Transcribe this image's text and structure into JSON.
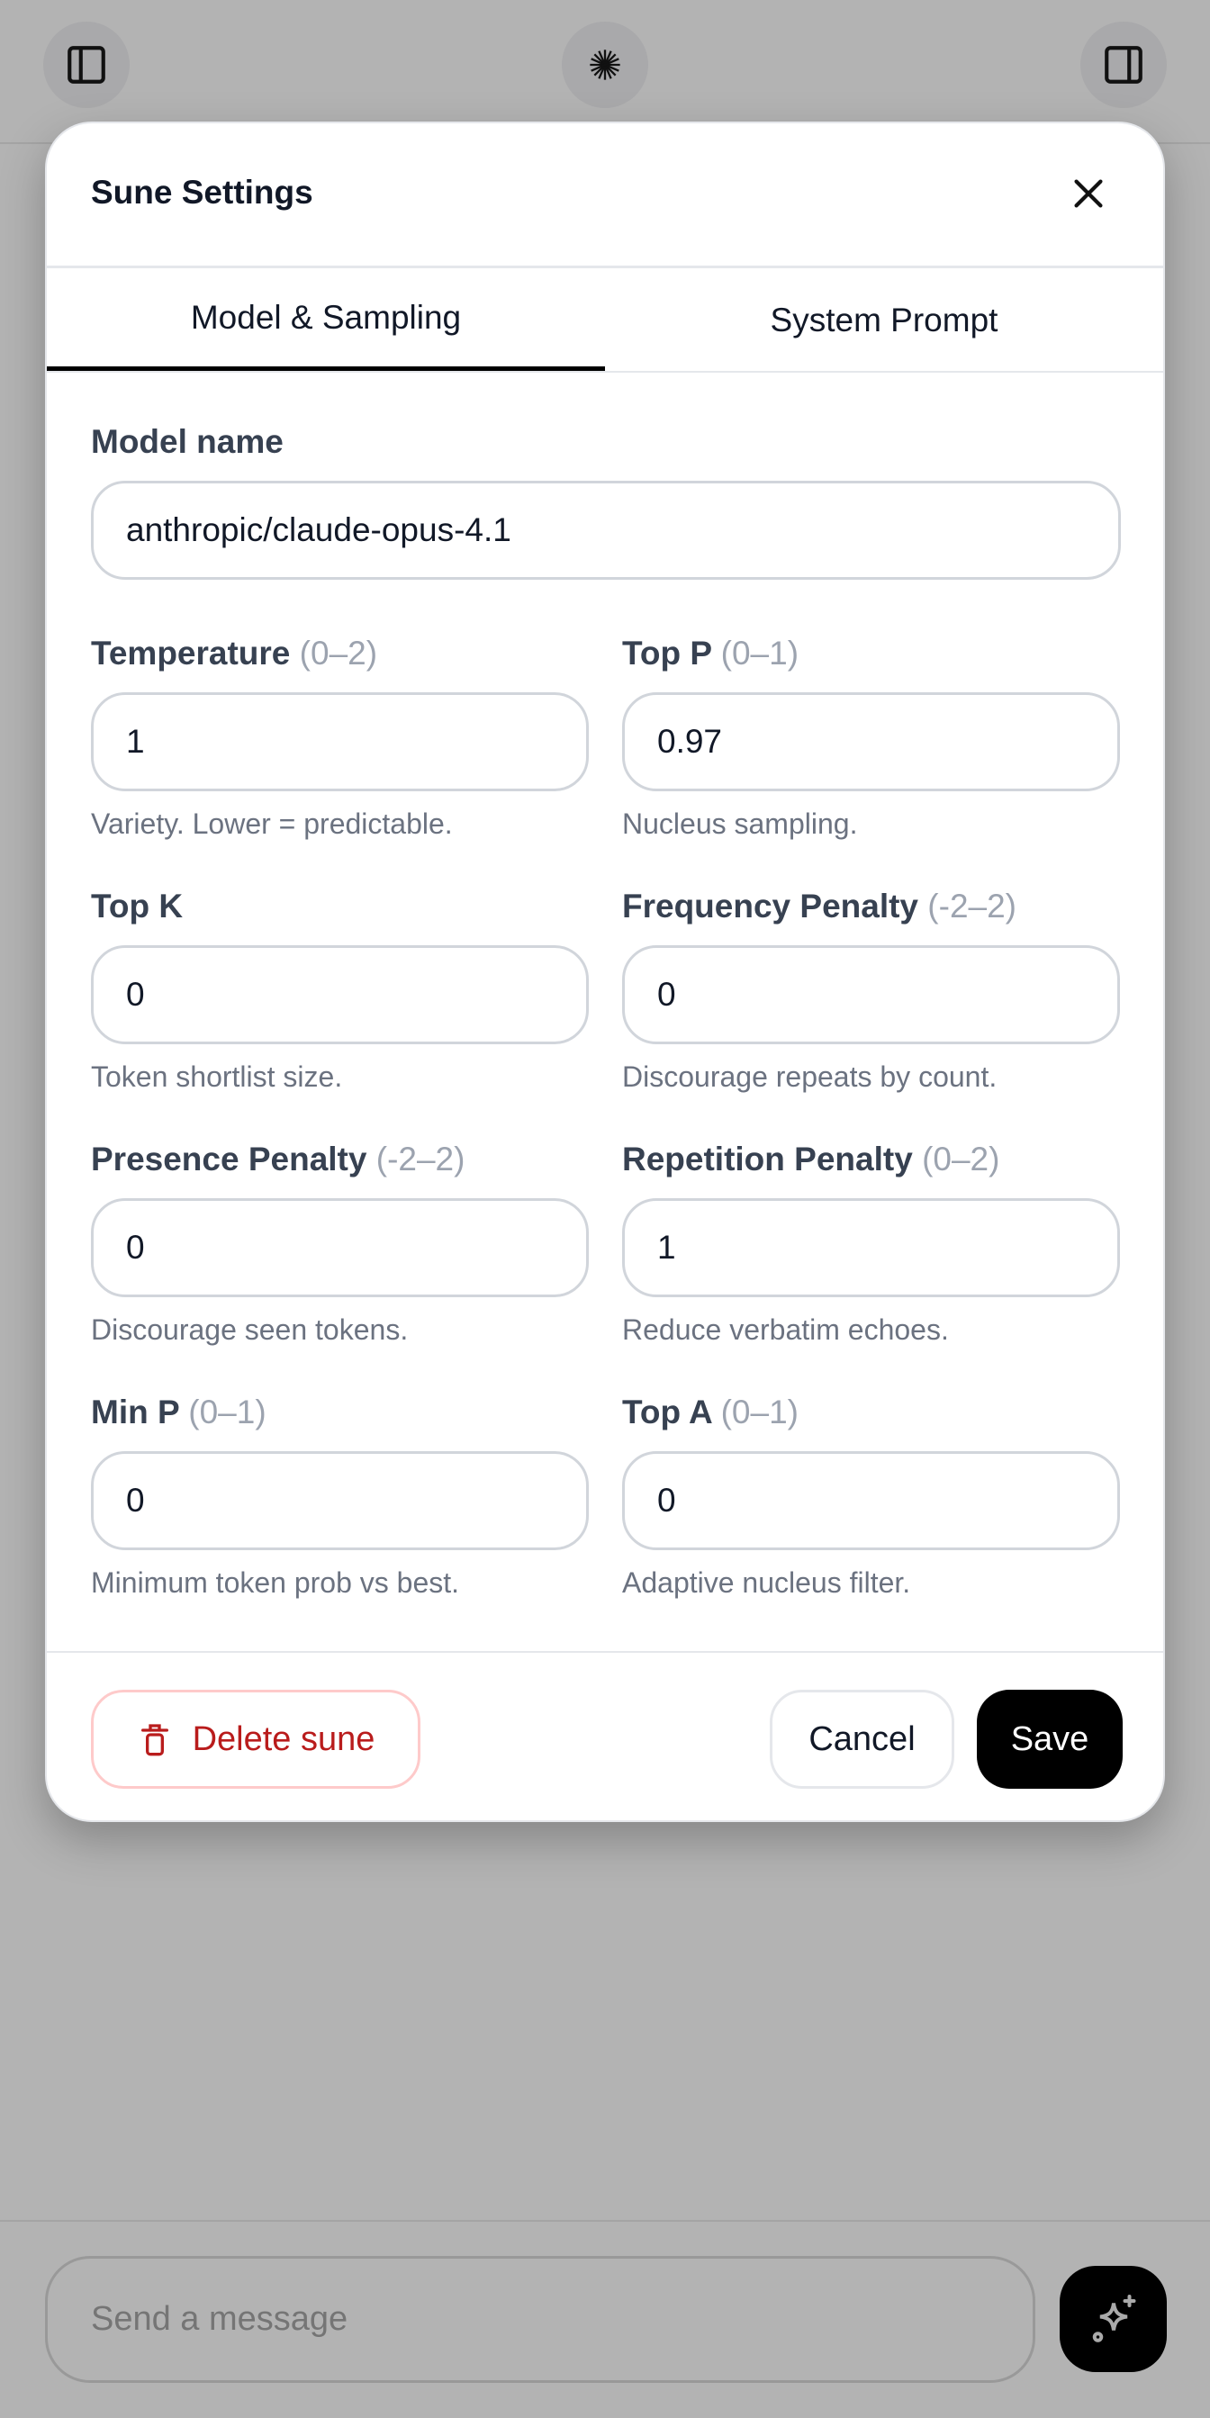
{
  "topbar": {
    "left_icon": "sidebar-left-icon",
    "center_icon": "sune-burst-icon",
    "right_icon": "sidebar-right-icon"
  },
  "modal": {
    "title": "Sune Settings",
    "close_icon": "close-icon",
    "tabs": [
      {
        "label": "Model & Sampling",
        "active": true
      },
      {
        "label": "System Prompt",
        "active": false
      }
    ],
    "model_name": {
      "label": "Model name",
      "value": "anthropic/claude-opus-4.1"
    },
    "fields": [
      {
        "label": "Temperature",
        "range": "(0–2)",
        "value": "1",
        "help": "Variety. Lower = predictable."
      },
      {
        "label": "Top P",
        "range": "(0–1)",
        "value": "0.97",
        "help": "Nucleus sampling."
      },
      {
        "label": "Top K",
        "range": "",
        "value": "0",
        "help": "Token shortlist size."
      },
      {
        "label": "Frequency Penalty",
        "range": "(-2–2)",
        "value": "0",
        "help": "Discourage repeats by count."
      },
      {
        "label": "Presence Penalty",
        "range": "(-2–2)",
        "value": "0",
        "help": "Discourage seen tokens."
      },
      {
        "label": "Repetition Penalty",
        "range": "(0–2)",
        "value": "1",
        "help": "Reduce verbatim echoes."
      },
      {
        "label": "Min P",
        "range": "(0–1)",
        "value": "0",
        "help": "Minimum token prob vs best."
      },
      {
        "label": "Top A",
        "range": "(0–1)",
        "value": "0",
        "help": "Adaptive nucleus filter."
      }
    ],
    "footer": {
      "delete_label": "Delete sune",
      "delete_icon": "trash-icon",
      "cancel_label": "Cancel",
      "save_label": "Save"
    }
  },
  "composer": {
    "placeholder": "Send a message",
    "send_icon": "sparkles-icon"
  },
  "colors": {
    "danger": "#b91c1c",
    "primary": "#000000",
    "backdrop": "#b3b3b3"
  }
}
